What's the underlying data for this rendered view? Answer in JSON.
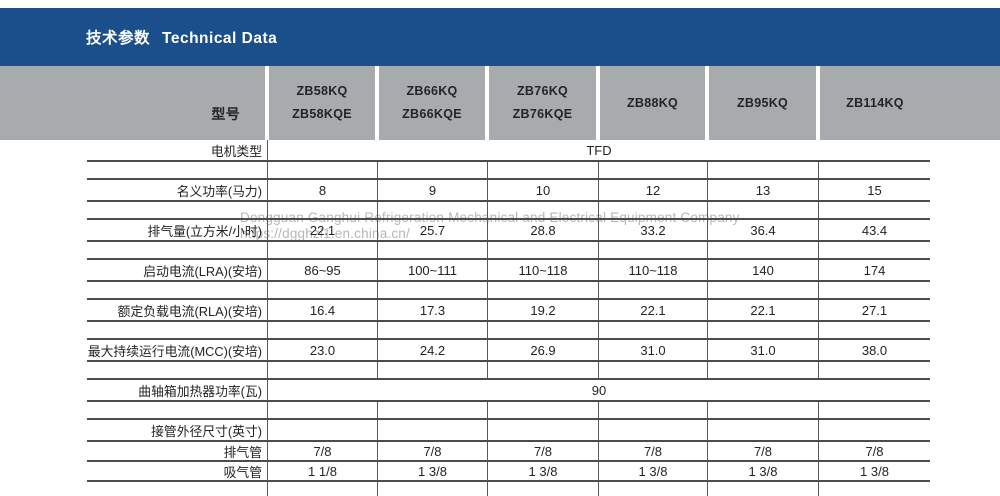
{
  "title": {
    "zh": "技术参数",
    "en": "Technical Data"
  },
  "colors": {
    "band_blue": "#1a4f8b",
    "header_gray": "#a8abae",
    "border_dark": "#4c4c4e",
    "border_vertical": "#59595b",
    "text": "#232326",
    "watermark_gray": "#b7b7b9"
  },
  "header": {
    "model_label": "型号",
    "models": [
      {
        "line1": "ZB58KQ",
        "line2": "ZB58KQE"
      },
      {
        "line1": "ZB66KQ",
        "line2": "ZB66KQE"
      },
      {
        "line1": "ZB76KQ",
        "line2": "ZB76KQE"
      },
      {
        "line1": "ZB88KQ",
        "line2": ""
      },
      {
        "line1": "ZB95KQ",
        "line2": ""
      },
      {
        "line1": "ZB114KQ",
        "line2": ""
      }
    ]
  },
  "rows": {
    "motor_type": {
      "label": "电机类型",
      "value": "TFD"
    },
    "nominal_power": {
      "label": "名义功率(马力)",
      "v1": "8",
      "v2": "9",
      "v3": "10",
      "v4": "12",
      "v5": "13",
      "v6": "15"
    },
    "displacement": {
      "label": "排气量(立方米/小时)",
      "v1": "22.1",
      "v2": "25.7",
      "v3": "28.8",
      "v4": "33.2",
      "v5": "36.4",
      "v6": "43.4"
    },
    "lra": {
      "label": "启动电流(LRA)(安培)",
      "v1": "86~95",
      "v2": "100~111",
      "v3": "110~118",
      "v4": "110~118",
      "v5": "140",
      "v6": "174"
    },
    "rla": {
      "label": "额定负载电流(RLA)(安培)",
      "v1": "16.4",
      "v2": "17.3",
      "v3": "19.2",
      "v4": "22.1",
      "v5": "22.1",
      "v6": "27.1"
    },
    "mcc": {
      "label": "最大持续运行电流(MCC)(安培)",
      "v1": "23.0",
      "v2": "24.2",
      "v3": "26.9",
      "v4": "31.0",
      "v5": "31.0",
      "v6": "38.0"
    },
    "crankcase_heater": {
      "label": "曲轴箱加热器功率(瓦)",
      "value": "90"
    },
    "pipe_od": {
      "label": "接管外径尺寸(英寸)"
    },
    "discharge_pipe": {
      "label": "排气管",
      "v1": "7/8",
      "v2": "7/8",
      "v3": "7/8",
      "v4": "7/8",
      "v5": "7/8",
      "v6": "7/8"
    },
    "suction_pipe": {
      "label": "吸气管",
      "v1": "1 1/8",
      "v2": "1 3/8",
      "v3": "1 3/8",
      "v4": "1 3/8",
      "v5": "1 3/8",
      "v6": "1 3/8"
    }
  },
  "watermark": {
    "line1": "Dongguan Ganghui  Refrigeration Mechanical and Electrical Equipment Company",
    "line2": "https://dgghzl1.en.china.cn/"
  }
}
